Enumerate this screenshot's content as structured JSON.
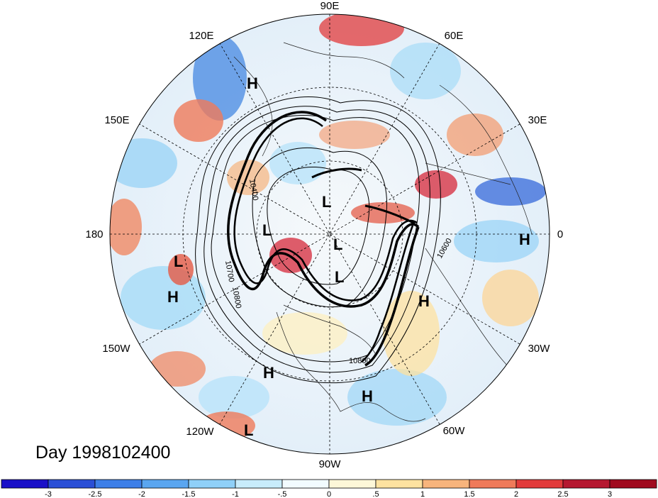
{
  "map": {
    "title": "Day 1998102400",
    "longitude_labels": [
      "90E",
      "60E",
      "30E",
      "0",
      "30W",
      "60W",
      "90W",
      "120W",
      "150W",
      "180",
      "150E",
      "120E"
    ],
    "contour_labels": [
      "10700",
      "10800",
      "10800",
      "10600",
      "10400"
    ],
    "pressure_centers": [
      {
        "type": "H"
      },
      {
        "type": "L"
      },
      {
        "type": "L"
      },
      {
        "type": "L"
      },
      {
        "type": "L"
      },
      {
        "type": "H"
      },
      {
        "type": "L"
      },
      {
        "type": "H"
      },
      {
        "type": "H"
      },
      {
        "type": "H"
      },
      {
        "type": "H"
      },
      {
        "type": "L"
      }
    ]
  },
  "colorbar": {
    "ticks": [
      "-3",
      "-2.5",
      "-2",
      "-1.5",
      "-1",
      "-.5",
      "0",
      ".5",
      "1",
      "1.5",
      "2",
      "2.5",
      "3"
    ],
    "colors": [
      "#1a10c8",
      "#2a4fd6",
      "#3d7fe8",
      "#5aa6f0",
      "#8fd0f8",
      "#c8ecfb",
      "#f2fbff",
      "#fdf7d8",
      "#fde2a0",
      "#f7b47c",
      "#ef7a5a",
      "#e23b3b",
      "#b51830",
      "#a00a1e"
    ]
  }
}
